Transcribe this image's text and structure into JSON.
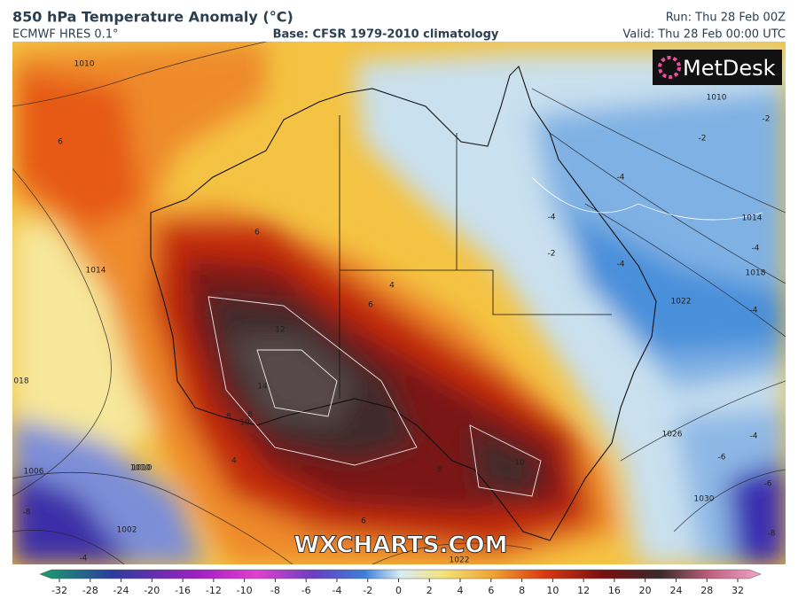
{
  "header": {
    "title": "850 hPa Temperature Anomaly (°C)",
    "model": "ECMWF HRES 0.1°",
    "base": "Base: CFSR 1979-2010 climatology",
    "run": "Run: Thu 28 Feb 00Z",
    "valid": "Valid: Thu 28 Feb 00:00 UTC"
  },
  "logo": "MetDesk",
  "watermark": "WXCHARTS.COM",
  "colorbar": {
    "ticks": [
      -32,
      -28,
      -24,
      -20,
      -16,
      -12,
      -10,
      -8,
      -6,
      -4,
      -2,
      0,
      2,
      4,
      6,
      8,
      10,
      12,
      16,
      20,
      24,
      28,
      32
    ]
  },
  "map": {
    "contour_labels": [
      "1010",
      "6",
      "1014",
      "018",
      "1010",
      "6",
      "12",
      "14",
      "8",
      "10",
      "4",
      "4",
      "6",
      "1006",
      "1010",
      "1002",
      "8",
      "10",
      "8",
      "6",
      "1022",
      "1026",
      "1030",
      "1010",
      "1014",
      "1018",
      "1022",
      "-2",
      "-2",
      "-4",
      "-4",
      "-4",
      "-2",
      "-4",
      "-4",
      "-4",
      "-6",
      "-8",
      "-8",
      "-6",
      "-4"
    ]
  }
}
